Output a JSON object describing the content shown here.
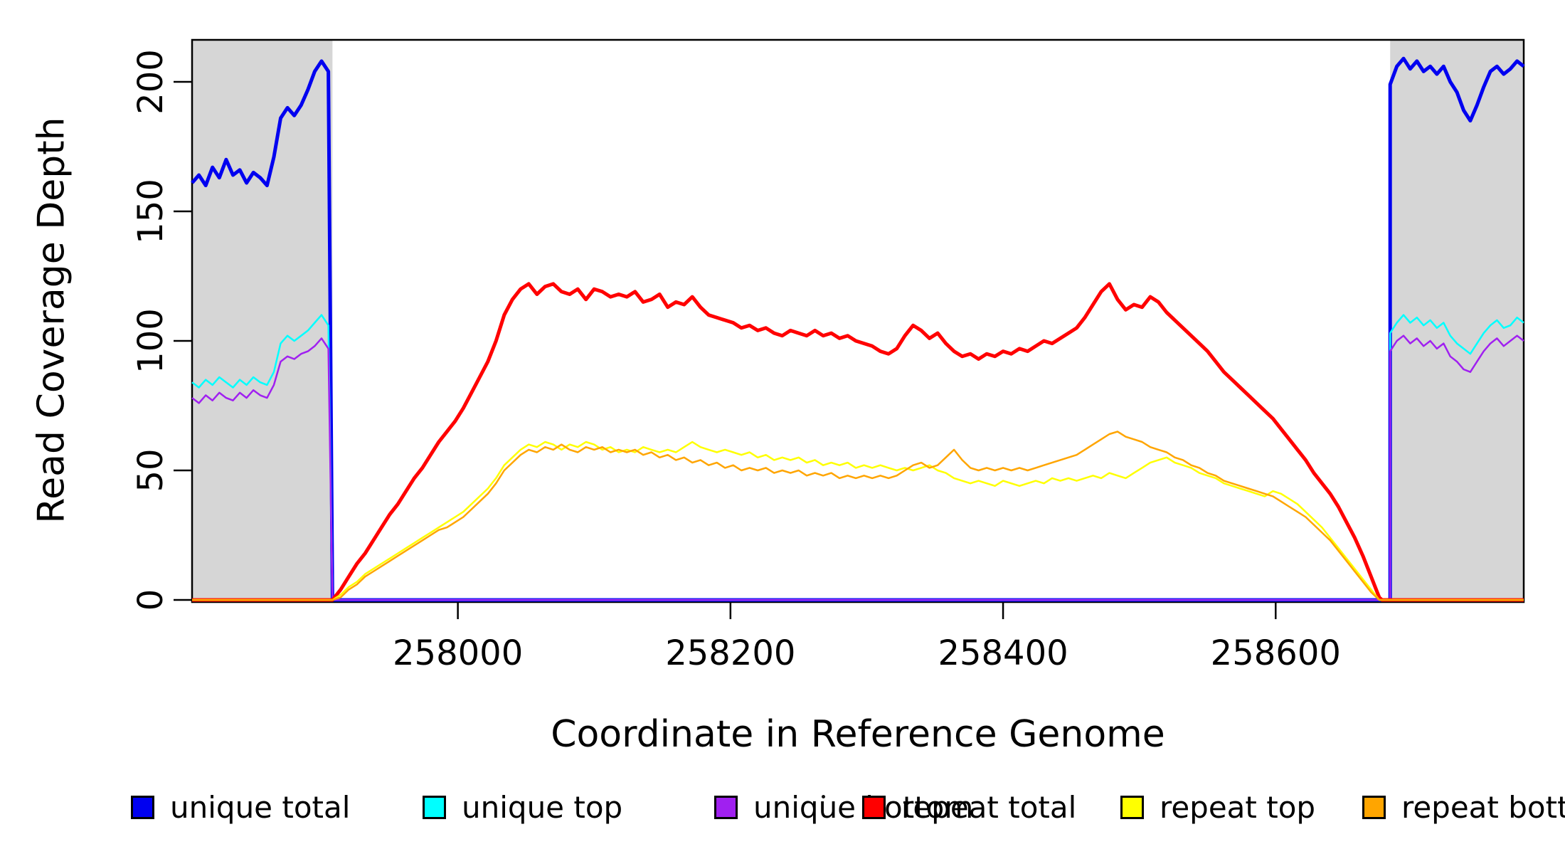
{
  "chart_data": {
    "type": "line",
    "title": "",
    "xlabel": "Coordinate in Reference Genome",
    "ylabel": "Read Coverage Depth",
    "xlim": [
      257805,
      258782
    ],
    "ylim": [
      0,
      216
    ],
    "xticks": [
      258000,
      258200,
      258400,
      258600
    ],
    "yticks": [
      0,
      50,
      100,
      150,
      200
    ],
    "grid": false,
    "legend_position": "bottom",
    "highlight_regions": [
      {
        "x0": 257805,
        "x1": 257908,
        "color": "#D6D6D6"
      },
      {
        "x0": 258684,
        "x1": 258782,
        "color": "#D6D6D6"
      }
    ],
    "series": [
      {
        "name": "unique total",
        "color": "#0000F0",
        "line_width": 5,
        "segments": [
          {
            "x0": 257805,
            "dx": 5,
            "values": [
              161,
              164,
              160,
              167,
              163,
              170,
              164,
              166,
              161,
              165,
              163,
              160,
              171,
              186,
              190,
              187,
              191,
              197,
              204,
              208,
              204
            ]
          },
          {
            "x0": 257908,
            "dx": 776,
            "values": [
              0,
              0
            ]
          },
          {
            "x0": 258684,
            "dx": 4.9,
            "values": [
              199,
              206,
              209,
              205,
              208,
              204,
              206,
              203,
              206,
              200,
              196,
              189,
              185,
              191,
              198,
              204,
              206,
              203,
              205,
              208,
              206
            ]
          }
        ]
      },
      {
        "name": "unique top",
        "color": "#00FFFF",
        "line_width": 2.5,
        "segments": [
          {
            "x0": 257805,
            "dx": 5,
            "values": [
              84,
              82,
              85,
              83,
              86,
              84,
              82,
              85,
              83,
              86,
              84,
              83,
              88,
              99,
              102,
              100,
              102,
              104,
              107,
              110,
              106
            ]
          },
          {
            "x0": 257908,
            "dx": 776,
            "values": [
              0,
              0
            ]
          },
          {
            "x0": 258684,
            "dx": 4.9,
            "values": [
              103,
              107,
              110,
              107,
              109,
              106,
              108,
              105,
              107,
              102,
              99,
              97,
              95,
              99,
              103,
              106,
              108,
              105,
              106,
              109,
              107
            ]
          }
        ]
      },
      {
        "name": "unique bottom",
        "color": "#A020F0",
        "line_width": 2.5,
        "segments": [
          {
            "x0": 257805,
            "dx": 5,
            "values": [
              78,
              76,
              79,
              77,
              80,
              78,
              77,
              80,
              78,
              81,
              79,
              78,
              83,
              92,
              94,
              93,
              95,
              96,
              98,
              101,
              97
            ]
          },
          {
            "x0": 257908,
            "dx": 776,
            "values": [
              0,
              0
            ]
          },
          {
            "x0": 258684,
            "dx": 4.9,
            "values": [
              96,
              100,
              102,
              99,
              101,
              98,
              100,
              97,
              99,
              94,
              92,
              89,
              88,
              92,
              96,
              99,
              101,
              98,
              100,
              102,
              100
            ]
          }
        ]
      },
      {
        "name": "repeat total",
        "color": "#FF0000",
        "line_width": 5,
        "segments": [
          {
            "x0": 257805,
            "dx": 103,
            "values": [
              0,
              0
            ]
          },
          {
            "x0": 257908,
            "dx": 6,
            "values": [
              0,
              4,
              9,
              14,
              18,
              23,
              28,
              33,
              37,
              42,
              47,
              51,
              56,
              61,
              65,
              69,
              74,
              80,
              86,
              92,
              100,
              110,
              116,
              120,
              122,
              118,
              121,
              122,
              119,
              118,
              120,
              116,
              120,
              119,
              117,
              118,
              117,
              119,
              115,
              116,
              118,
              113,
              115,
              114,
              117,
              113,
              110,
              109,
              108,
              107,
              105,
              106,
              104,
              105,
              103,
              102,
              104,
              103,
              102,
              104,
              102,
              103,
              101,
              102,
              100,
              99,
              98,
              96,
              95,
              97,
              102,
              106,
              104,
              101,
              103,
              99,
              96,
              94,
              95,
              93,
              95,
              94,
              96,
              95,
              97,
              96,
              98,
              100,
              99,
              101,
              103,
              105,
              109,
              114,
              119,
              122,
              116,
              112,
              114,
              113,
              117,
              115,
              111,
              108,
              105,
              102,
              99,
              96,
              92,
              88,
              85,
              82,
              79,
              76,
              73,
              70,
              66,
              62,
              58,
              54,
              49,
              45,
              41,
              36,
              30,
              24,
              17,
              9,
              1
            ]
          },
          {
            "x0": 258678,
            "dx": 52,
            "values": [
              0,
              0,
              0
            ]
          }
        ]
      },
      {
        "name": "repeat top",
        "color": "#FFFF00",
        "line_width": 2.5,
        "segments": [
          {
            "x0": 257805,
            "dx": 103,
            "values": [
              0,
              0
            ]
          },
          {
            "x0": 257908,
            "dx": 6,
            "values": [
              0,
              2,
              5,
              7,
              10,
              12,
              14,
              16,
              18,
              20,
              22,
              24,
              26,
              28,
              30,
              32,
              34,
              37,
              40,
              43,
              47,
              52,
              55,
              58,
              60,
              59,
              61,
              60,
              58,
              60,
              59,
              61,
              60,
              58,
              59,
              57,
              58,
              57,
              59,
              58,
              57,
              58,
              57,
              59,
              61,
              59,
              58,
              57,
              58,
              57,
              56,
              57,
              55,
              56,
              54,
              55,
              54,
              55,
              53,
              54,
              52,
              53,
              52,
              53,
              51,
              52,
              51,
              52,
              51,
              50,
              51,
              50,
              51,
              52,
              50,
              49,
              47,
              46,
              45,
              46,
              45,
              44,
              46,
              45,
              44,
              45,
              46,
              45,
              47,
              46,
              47,
              46,
              47,
              48,
              47,
              49,
              48,
              47,
              49,
              51,
              53,
              54,
              55,
              53,
              52,
              51,
              49,
              48,
              47,
              45,
              44,
              43,
              42,
              41,
              40,
              42,
              41,
              39,
              37,
              34,
              31,
              28,
              24,
              20,
              16,
              12,
              8,
              4,
              0
            ]
          },
          {
            "x0": 258678,
            "dx": 52,
            "values": [
              0,
              0,
              0
            ]
          }
        ]
      },
      {
        "name": "repeat bottom",
        "color": "#FFA500",
        "line_width": 2.5,
        "segments": [
          {
            "x0": 257805,
            "dx": 103,
            "values": [
              0,
              0
            ]
          },
          {
            "x0": 257908,
            "dx": 6,
            "values": [
              0,
              1,
              4,
              6,
              9,
              11,
              13,
              15,
              17,
              19,
              21,
              23,
              25,
              27,
              28,
              30,
              32,
              35,
              38,
              41,
              45,
              50,
              53,
              56,
              58,
              57,
              59,
              58,
              60,
              58,
              57,
              59,
              58,
              59,
              57,
              58,
              57,
              58,
              56,
              57,
              55,
              56,
              54,
              55,
              53,
              54,
              52,
              53,
              51,
              52,
              50,
              51,
              50,
              51,
              49,
              50,
              49,
              50,
              48,
              49,
              48,
              49,
              47,
              48,
              47,
              48,
              47,
              48,
              47,
              48,
              50,
              52,
              53,
              51,
              52,
              55,
              58,
              54,
              51,
              50,
              51,
              50,
              51,
              50,
              51,
              50,
              51,
              52,
              53,
              54,
              55,
              56,
              58,
              60,
              62,
              64,
              65,
              63,
              62,
              61,
              59,
              58,
              57,
              55,
              54,
              52,
              51,
              49,
              48,
              46,
              45,
              44,
              43,
              42,
              41,
              40,
              38,
              36,
              34,
              32,
              29,
              26,
              23,
              19,
              15,
              11,
              7,
              3,
              0
            ]
          },
          {
            "x0": 258678,
            "dx": 52,
            "values": [
              0,
              0,
              0
            ]
          }
        ]
      }
    ]
  },
  "legend": {
    "items": [
      {
        "label": "unique total",
        "color": "#0000F0"
      },
      {
        "label": "unique top",
        "color": "#00FFFF"
      },
      {
        "label": "unique bottom",
        "color": "#A020F0"
      },
      {
        "label": "repeat total",
        "color": "#FF0000"
      },
      {
        "label": "repeat top",
        "color": "#FFFF00"
      },
      {
        "label": "repeat bottom",
        "color": "#FFA500"
      }
    ],
    "stray_dot": "."
  }
}
